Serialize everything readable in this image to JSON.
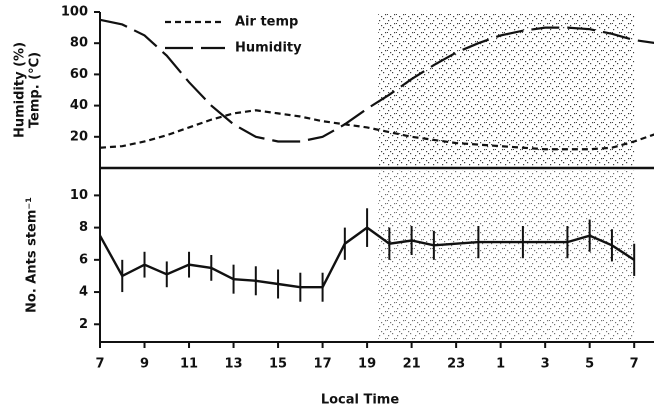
{
  "chart_data": [
    {
      "type": "line",
      "ylabel_lines": [
        "Humidity (%)",
        "Temp. (°C)"
      ],
      "x": [
        7,
        8,
        9,
        10,
        11,
        12,
        13,
        14,
        15,
        16,
        17,
        18,
        19,
        20,
        21,
        22,
        23,
        24,
        25,
        26,
        27,
        28,
        29,
        30,
        31,
        32
      ],
      "series": [
        {
          "name": "Air temp",
          "color": "#111111",
          "dash": "short",
          "values": [
            13,
            14,
            17,
            21,
            26,
            31,
            35,
            37,
            35,
            33,
            30,
            28,
            26,
            23,
            20,
            18,
            16,
            15,
            14,
            13,
            12,
            12,
            12,
            13,
            17,
            22
          ]
        },
        {
          "name": "Humidity",
          "color": "#111111",
          "dash": "long",
          "values": [
            95,
            92,
            85,
            72,
            55,
            40,
            28,
            20,
            17,
            17,
            20,
            28,
            38,
            47,
            57,
            66,
            74,
            80,
            85,
            88,
            90,
            90,
            89,
            86,
            82,
            80
          ]
        }
      ],
      "xlim": [
        7,
        31.8
      ],
      "ylim": [
        0,
        100
      ],
      "yticks": [
        20,
        40,
        60,
        80,
        100
      ],
      "night_span": [
        19.5,
        31
      ],
      "legend": "upper left"
    },
    {
      "type": "errorbar",
      "xlabel": "Local Time",
      "ylabel": "No. Ants stem⁻¹",
      "x": [
        7,
        8,
        9,
        10,
        11,
        12,
        13,
        14,
        15,
        16,
        17,
        18,
        19,
        20,
        21,
        22,
        24,
        26,
        28,
        29,
        30,
        31
      ],
      "values": [
        7.5,
        5.0,
        5.7,
        5.1,
        5.7,
        5.5,
        4.8,
        4.7,
        4.5,
        4.3,
        4.3,
        7.0,
        8.0,
        7.0,
        7.2,
        6.9,
        7.1,
        7.1,
        7.1,
        7.5,
        6.9,
        6.0
      ],
      "errors": [
        1,
        1,
        0.8,
        0.8,
        0.8,
        0.8,
        0.9,
        0.9,
        0.9,
        0.9,
        0.9,
        1,
        1.2,
        1,
        0.9,
        0.9,
        1,
        1,
        1,
        1,
        1,
        1
      ],
      "color": "#111111",
      "xlim": [
        7,
        31.8
      ],
      "ylim": [
        0.9,
        11.7
      ],
      "yticks": [
        2,
        4,
        6,
        8,
        10
      ],
      "xticks": [
        7,
        9,
        11,
        13,
        15,
        17,
        19,
        21,
        23,
        {
          "value": 25,
          "label": "1"
        },
        {
          "value": 27,
          "label": "3"
        },
        {
          "value": 29,
          "label": "5"
        },
        {
          "value": 31,
          "label": "7"
        }
      ],
      "night_span": [
        19.5,
        31
      ]
    }
  ]
}
